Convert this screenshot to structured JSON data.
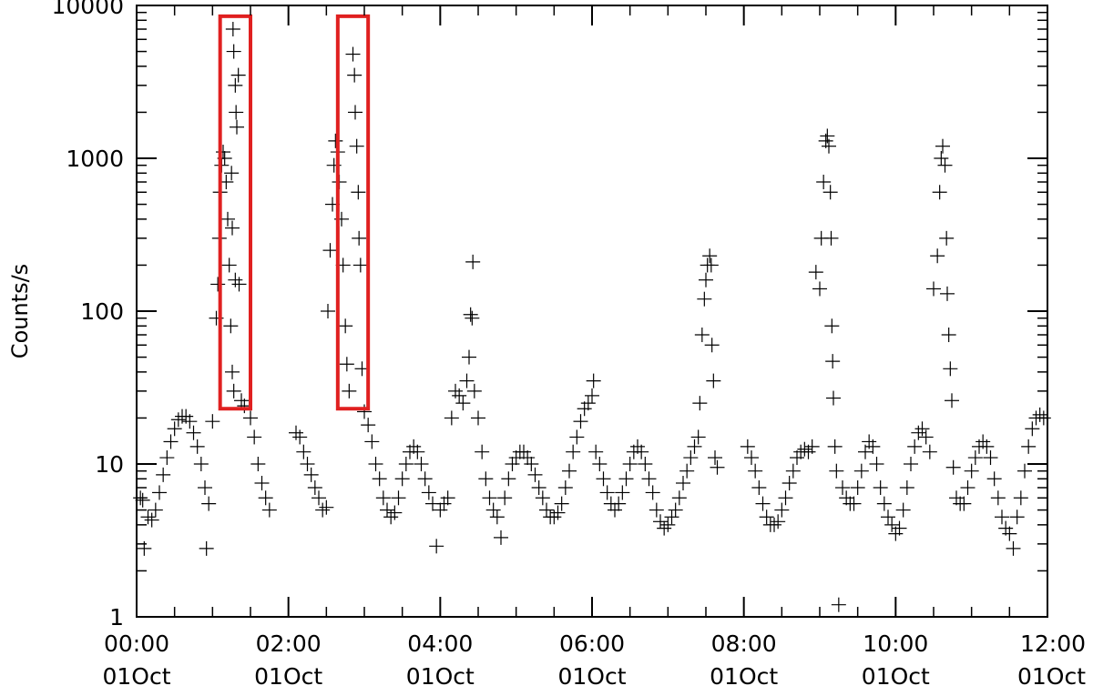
{
  "chart_data": {
    "type": "scatter",
    "marker": "plus",
    "title": "",
    "xlabel": "",
    "ylabel": "Counts/s",
    "yscale": "log",
    "ylim": [
      1,
      10000
    ],
    "xlim": [
      "2000-10-01T00:00",
      "2000-10-01T12:00"
    ],
    "x_units": "hours",
    "y_ticks": [
      {
        "value": 1,
        "label": "1"
      },
      {
        "value": 10,
        "label": "10"
      },
      {
        "value": 100,
        "label": "100"
      },
      {
        "value": 1000,
        "label": "1000"
      },
      {
        "value": 10000,
        "label": "10000"
      }
    ],
    "x_ticks": [
      {
        "value": 0,
        "time": "00:00",
        "date": "01Oct"
      },
      {
        "value": 2,
        "time": "02:00",
        "date": "01Oct"
      },
      {
        "value": 4,
        "time": "04:00",
        "date": "01Oct"
      },
      {
        "value": 6,
        "time": "06:00",
        "date": "01Oct"
      },
      {
        "value": 8,
        "time": "08:00",
        "date": "01Oct"
      },
      {
        "value": 10,
        "time": "10:00",
        "date": "01Oct"
      },
      {
        "value": 12,
        "time": "12:00",
        "date": "01Oct"
      }
    ],
    "highlight_boxes": [
      {
        "x": [
          1.1,
          1.5
        ],
        "y": [
          23,
          8500
        ],
        "color": "#e02020"
      },
      {
        "x": [
          2.65,
          3.05
        ],
        "y": [
          23,
          8500
        ],
        "color": "#e02020"
      }
    ],
    "background_series": {
      "amplitude_log10": 0.31,
      "center_log10": 0.95,
      "period_hours": 1.5,
      "phase_hours": 0.6
    },
    "series": [
      {
        "points": [
          [
            0.05,
            6.0
          ],
          [
            0.08,
            5.8
          ],
          [
            0.1,
            2.8
          ],
          [
            0.15,
            4.5
          ],
          [
            0.2,
            4.3
          ],
          [
            0.25,
            5.0
          ],
          [
            0.3,
            6.5
          ],
          [
            0.35,
            8.5
          ],
          [
            0.4,
            11.0
          ],
          [
            0.45,
            14.0
          ],
          [
            0.5,
            17.0
          ],
          [
            0.55,
            19.5
          ],
          [
            0.6,
            20.5
          ],
          [
            0.65,
            20.5
          ],
          [
            0.7,
            19.0
          ],
          [
            0.75,
            16.0
          ],
          [
            0.8,
            13.0
          ],
          [
            0.85,
            10.0
          ],
          [
            0.9,
            7.0
          ],
          [
            0.95,
            5.5
          ],
          [
            0.92,
            2.8
          ],
          [
            1.0,
            19.0
          ],
          [
            1.05,
            90
          ],
          [
            1.07,
            150
          ],
          [
            1.09,
            300
          ],
          [
            1.1,
            600
          ],
          [
            1.12,
            900
          ],
          [
            1.14,
            1100
          ],
          [
            1.16,
            1000
          ],
          [
            1.18,
            700
          ],
          [
            1.2,
            400
          ],
          [
            1.22,
            200
          ],
          [
            1.24,
            80
          ],
          [
            1.26,
            40
          ],
          [
            1.28,
            30
          ],
          [
            1.27,
            7000
          ],
          [
            1.28,
            5000
          ],
          [
            1.3,
            3000
          ],
          [
            1.31,
            2000
          ],
          [
            1.32,
            1600
          ],
          [
            1.34,
            3500
          ],
          [
            1.25,
            800
          ],
          [
            1.26,
            350
          ],
          [
            1.3,
            160
          ],
          [
            1.35,
            150
          ],
          [
            1.38,
            26
          ],
          [
            1.42,
            24
          ],
          [
            1.5,
            20
          ],
          [
            1.55,
            15
          ],
          [
            1.6,
            10
          ],
          [
            1.65,
            7.5
          ],
          [
            1.7,
            6.0
          ],
          [
            1.75,
            5.0
          ],
          [
            2.1,
            16
          ],
          [
            2.15,
            15
          ],
          [
            2.2,
            12
          ],
          [
            2.25,
            10
          ],
          [
            2.3,
            8.5
          ],
          [
            2.35,
            7.0
          ],
          [
            2.4,
            6.0
          ],
          [
            2.45,
            5.0
          ],
          [
            2.5,
            5.2
          ],
          [
            2.52,
            100
          ],
          [
            2.55,
            250
          ],
          [
            2.58,
            500
          ],
          [
            2.6,
            900
          ],
          [
            2.62,
            1300
          ],
          [
            2.65,
            1100
          ],
          [
            2.67,
            700
          ],
          [
            2.7,
            400
          ],
          [
            2.72,
            200
          ],
          [
            2.75,
            80
          ],
          [
            2.77,
            45
          ],
          [
            2.8,
            30
          ],
          [
            2.85,
            4800
          ],
          [
            2.87,
            3500
          ],
          [
            2.88,
            2000
          ],
          [
            2.9,
            1200
          ],
          [
            2.92,
            600
          ],
          [
            2.93,
            300
          ],
          [
            2.95,
            200
          ],
          [
            2.97,
            42
          ],
          [
            3.0,
            22
          ],
          [
            3.05,
            18
          ],
          [
            3.1,
            14
          ],
          [
            3.15,
            10
          ],
          [
            3.2,
            8
          ],
          [
            3.25,
            6
          ],
          [
            3.3,
            5
          ],
          [
            3.35,
            4.5
          ],
          [
            3.4,
            4.8
          ],
          [
            3.45,
            6
          ],
          [
            3.5,
            8
          ],
          [
            3.55,
            10
          ],
          [
            3.6,
            12
          ],
          [
            3.65,
            13
          ],
          [
            3.7,
            12
          ],
          [
            3.75,
            10
          ],
          [
            3.8,
            8
          ],
          [
            3.85,
            6.5
          ],
          [
            3.9,
            5.5
          ],
          [
            3.95,
            2.9
          ],
          [
            4.0,
            5.0
          ],
          [
            4.05,
            5.5
          ],
          [
            4.1,
            6.0
          ],
          [
            4.15,
            20
          ],
          [
            4.2,
            30
          ],
          [
            4.25,
            28
          ],
          [
            4.3,
            25
          ],
          [
            4.35,
            35
          ],
          [
            4.38,
            50
          ],
          [
            4.4,
            95
          ],
          [
            4.42,
            90
          ],
          [
            4.43,
            210
          ],
          [
            4.45,
            30
          ],
          [
            4.5,
            20
          ],
          [
            4.55,
            12
          ],
          [
            4.6,
            8
          ],
          [
            4.65,
            6
          ],
          [
            4.7,
            5
          ],
          [
            4.75,
            4.5
          ],
          [
            4.8,
            3.3
          ],
          [
            4.85,
            6
          ],
          [
            4.9,
            8
          ],
          [
            4.95,
            10
          ],
          [
            5.0,
            11
          ],
          [
            5.05,
            12
          ],
          [
            5.1,
            12
          ],
          [
            5.15,
            11
          ],
          [
            5.2,
            10
          ],
          [
            5.25,
            8.5
          ],
          [
            5.3,
            7
          ],
          [
            5.35,
            6
          ],
          [
            5.4,
            5
          ],
          [
            5.45,
            4.5
          ],
          [
            5.5,
            4.5
          ],
          [
            5.55,
            4.8
          ],
          [
            5.6,
            5.5
          ],
          [
            5.65,
            7
          ],
          [
            5.7,
            9
          ],
          [
            5.75,
            12
          ],
          [
            5.8,
            15
          ],
          [
            5.85,
            19
          ],
          [
            5.9,
            23
          ],
          [
            5.95,
            25
          ],
          [
            6.0,
            28
          ],
          [
            6.02,
            35
          ],
          [
            6.05,
            12
          ],
          [
            6.1,
            10
          ],
          [
            6.15,
            8
          ],
          [
            6.2,
            6.5
          ],
          [
            6.25,
            5.5
          ],
          [
            6.3,
            5
          ],
          [
            6.35,
            5.5
          ],
          [
            6.4,
            6.5
          ],
          [
            6.45,
            8
          ],
          [
            6.5,
            10
          ],
          [
            6.55,
            12
          ],
          [
            6.6,
            13
          ],
          [
            6.65,
            12
          ],
          [
            6.7,
            10
          ],
          [
            6.75,
            8
          ],
          [
            6.8,
            6.5
          ],
          [
            6.85,
            5
          ],
          [
            6.9,
            4.2
          ],
          [
            6.95,
            3.8
          ],
          [
            7.0,
            4.0
          ],
          [
            7.05,
            4.5
          ],
          [
            7.1,
            5
          ],
          [
            7.15,
            6
          ],
          [
            7.2,
            7.5
          ],
          [
            7.25,
            9
          ],
          [
            7.3,
            11
          ],
          [
            7.35,
            13
          ],
          [
            7.4,
            15
          ],
          [
            7.42,
            25
          ],
          [
            7.45,
            70
          ],
          [
            7.48,
            120
          ],
          [
            7.5,
            160
          ],
          [
            7.52,
            200
          ],
          [
            7.55,
            230
          ],
          [
            7.57,
            200
          ],
          [
            7.58,
            60
          ],
          [
            7.6,
            35
          ],
          [
            7.62,
            11
          ],
          [
            7.65,
            9.5
          ],
          [
            8.05,
            13
          ],
          [
            8.1,
            11
          ],
          [
            8.15,
            9
          ],
          [
            8.2,
            7
          ],
          [
            8.25,
            5.5
          ],
          [
            8.3,
            4.5
          ],
          [
            8.35,
            4
          ],
          [
            8.4,
            4
          ],
          [
            8.45,
            4.2
          ],
          [
            8.5,
            5
          ],
          [
            8.55,
            6
          ],
          [
            8.6,
            7.5
          ],
          [
            8.65,
            9
          ],
          [
            8.7,
            11
          ],
          [
            8.75,
            12
          ],
          [
            8.8,
            12.5
          ],
          [
            8.85,
            12
          ],
          [
            8.9,
            13
          ],
          [
            8.95,
            180
          ],
          [
            9.0,
            140
          ],
          [
            9.02,
            300
          ],
          [
            9.05,
            700
          ],
          [
            9.08,
            1300
          ],
          [
            9.1,
            1400
          ],
          [
            9.12,
            1200
          ],
          [
            9.14,
            600
          ],
          [
            9.15,
            300
          ],
          [
            9.16,
            80
          ],
          [
            9.17,
            47
          ],
          [
            9.18,
            27
          ],
          [
            9.2,
            13
          ],
          [
            9.22,
            9
          ],
          [
            9.25,
            1.2
          ],
          [
            9.3,
            7
          ],
          [
            9.35,
            6
          ],
          [
            9.4,
            5.5
          ],
          [
            9.45,
            5.5
          ],
          [
            9.5,
            7
          ],
          [
            9.55,
            9
          ],
          [
            9.6,
            12
          ],
          [
            9.65,
            14
          ],
          [
            9.7,
            13
          ],
          [
            9.75,
            10
          ],
          [
            9.8,
            7
          ],
          [
            9.85,
            5.5
          ],
          [
            9.9,
            4.5
          ],
          [
            9.95,
            4
          ],
          [
            10.0,
            3.5
          ],
          [
            10.05,
            3.8
          ],
          [
            10.1,
            5
          ],
          [
            10.15,
            7
          ],
          [
            10.2,
            10
          ],
          [
            10.25,
            13
          ],
          [
            10.3,
            16
          ],
          [
            10.35,
            17
          ],
          [
            10.4,
            15
          ],
          [
            10.45,
            12
          ],
          [
            10.5,
            140
          ],
          [
            10.55,
            230
          ],
          [
            10.58,
            600
          ],
          [
            10.6,
            1000
          ],
          [
            10.62,
            1200
          ],
          [
            10.65,
            900
          ],
          [
            10.67,
            300
          ],
          [
            10.68,
            130
          ],
          [
            10.7,
            70
          ],
          [
            10.72,
            42
          ],
          [
            10.74,
            26
          ],
          [
            10.76,
            9.5
          ],
          [
            10.8,
            6
          ],
          [
            10.85,
            5.5
          ],
          [
            10.9,
            5.5
          ],
          [
            10.95,
            7
          ],
          [
            11.0,
            9
          ],
          [
            11.05,
            11
          ],
          [
            11.1,
            13
          ],
          [
            11.15,
            14
          ],
          [
            11.2,
            13
          ],
          [
            11.25,
            11
          ],
          [
            11.3,
            8
          ],
          [
            11.35,
            6
          ],
          [
            11.4,
            4.5
          ],
          [
            11.45,
            3.8
          ],
          [
            11.5,
            3.5
          ],
          [
            11.55,
            2.8
          ],
          [
            11.6,
            4.5
          ],
          [
            11.65,
            6
          ],
          [
            11.7,
            9
          ],
          [
            11.75,
            13
          ],
          [
            11.8,
            17
          ],
          [
            11.85,
            20
          ],
          [
            11.9,
            21
          ],
          [
            11.95,
            20
          ]
        ]
      }
    ]
  }
}
